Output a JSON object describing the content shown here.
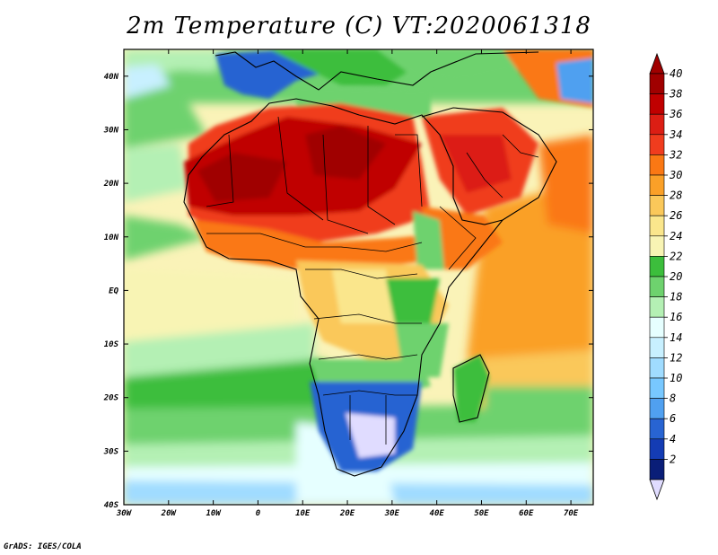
{
  "title": "2m Temperature (C) VT:2020061318",
  "credit": "GrADS: IGES/COLA",
  "map": {
    "lat_labels": [
      "40N",
      "30N",
      "20N",
      "10N",
      "EQ",
      "10S",
      "20S",
      "30S",
      "40S"
    ],
    "lon_labels": [
      "30W",
      "20W",
      "10W",
      "0",
      "10E",
      "20E",
      "30E",
      "40E",
      "50E",
      "60E",
      "70E"
    ],
    "lat_range": [
      -40,
      45
    ],
    "lon_range": [
      -30,
      75
    ]
  },
  "colorbar": {
    "levels": [
      "40",
      "38",
      "36",
      "34",
      "32",
      "30",
      "28",
      "26",
      "24",
      "22",
      "20",
      "18",
      "16",
      "14",
      "12",
      "10",
      "8",
      "6",
      "4",
      "2"
    ],
    "colors": [
      "#a00000",
      "#c00000",
      "#dc1e14",
      "#f03c1e",
      "#fa7814",
      "#faa028",
      "#fac85a",
      "#fae68c",
      "#f8f4b4",
      "#3cbe3c",
      "#6ed26e",
      "#b4f0b4",
      "#e6ffff",
      "#c8f0ff",
      "#a0dcff",
      "#78c8ff",
      "#50a0f0",
      "#2864d2",
      "#143cb4",
      "#0a1e78"
    ],
    "top_color": "#a00000",
    "bottom_color": "#e0dcff"
  }
}
